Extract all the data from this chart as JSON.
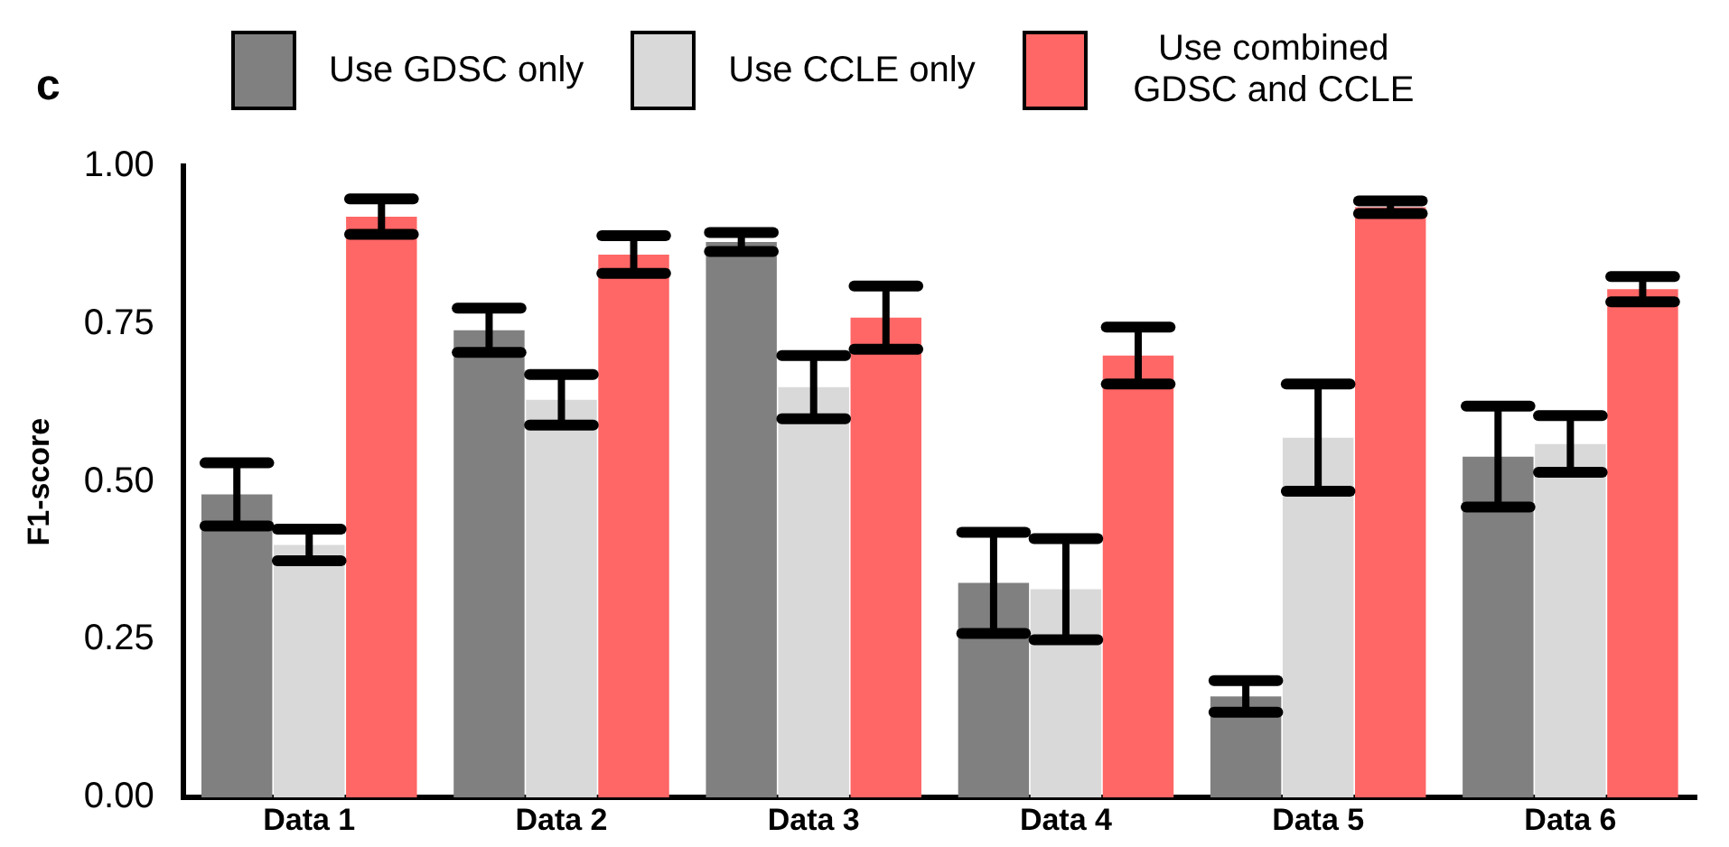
{
  "chart_data": {
    "type": "bar",
    "title": "c",
    "ylabel": "F1-score",
    "categories": [
      "Data 1",
      "Data 2",
      "Data 3",
      "Data 4",
      "Data 5",
      "Data 6"
    ],
    "series": [
      {
        "name": "Use GDSC only",
        "color": "#808080",
        "values": [
          0.48,
          0.74,
          0.88,
          0.34,
          0.16,
          0.54
        ],
        "errors": [
          0.05,
          0.035,
          0.015,
          0.08,
          0.025,
          0.08
        ]
      },
      {
        "name": "Use CCLE only",
        "color": "#d9d9d9",
        "values": [
          0.4,
          0.63,
          0.65,
          0.33,
          0.57,
          0.56
        ],
        "errors": [
          0.025,
          0.04,
          0.05,
          0.08,
          0.085,
          0.045
        ]
      },
      {
        "name": "Use combined GDSC and CCLE",
        "color": "#ff6666",
        "values": [
          0.92,
          0.86,
          0.76,
          0.7,
          0.935,
          0.805
        ],
        "errors": [
          0.028,
          0.03,
          0.05,
          0.045,
          0.01,
          0.02
        ]
      }
    ],
    "ylim": [
      0,
      1
    ],
    "yticks": [
      {
        "value": 0,
        "label": "0.00"
      },
      {
        "value": 0.25,
        "label": "0.25"
      },
      {
        "value": 0.5,
        "label": "0.50"
      },
      {
        "value": 0.75,
        "label": "0.75"
      },
      {
        "value": 1,
        "label": "1.00"
      }
    ],
    "grid": false,
    "legend": "top"
  }
}
